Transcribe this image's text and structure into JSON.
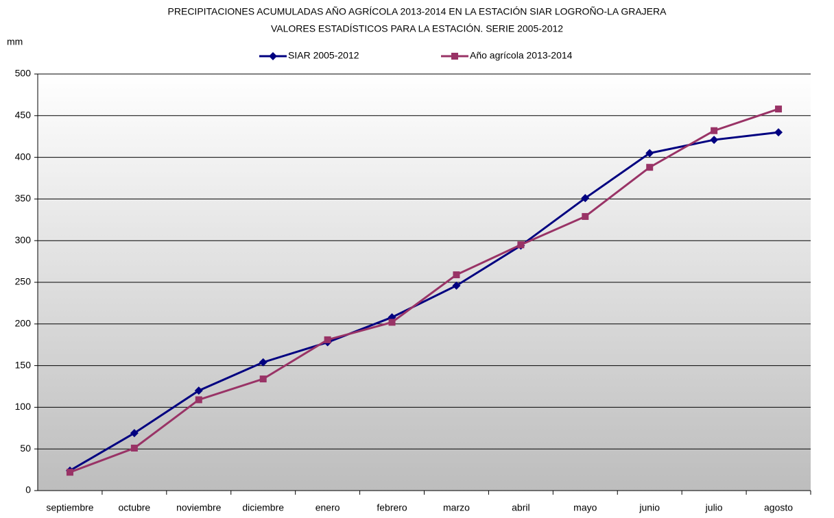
{
  "chart_data": {
    "type": "line",
    "title": "PRECIPITACIONES ACUMULADAS AÑO AGRÍCOLA 2013-2014 EN LA ESTACIÓN SIAR LOGROÑO-LA GRAJERA",
    "subtitle": "VALORES ESTADÍSTICOS PARA LA ESTACIÓN. SERIE 2005-2012",
    "y_label": "mm",
    "categories": [
      "septiembre",
      "octubre",
      "noviembre",
      "diciembre",
      "enero",
      "febrero",
      "marzo",
      "abril",
      "mayo",
      "junio",
      "julio",
      "agosto"
    ],
    "series": [
      {
        "name": "SIAR 2005-2012",
        "color": "#000080",
        "marker": "diamond",
        "values": [
          24,
          69,
          120,
          154,
          178,
          208,
          246,
          294,
          351,
          405,
          421,
          430
        ]
      },
      {
        "name": "Año agrícola 2013-2014",
        "color": "#993366",
        "marker": "square",
        "values": [
          22,
          51,
          109,
          134,
          181,
          202,
          259,
          295,
          329,
          388,
          432,
          458
        ]
      }
    ],
    "ylim": [
      0,
      500
    ],
    "yticks": [
      0,
      50,
      100,
      150,
      200,
      250,
      300,
      350,
      400,
      450,
      500
    ],
    "grid": true,
    "legend": "top"
  }
}
